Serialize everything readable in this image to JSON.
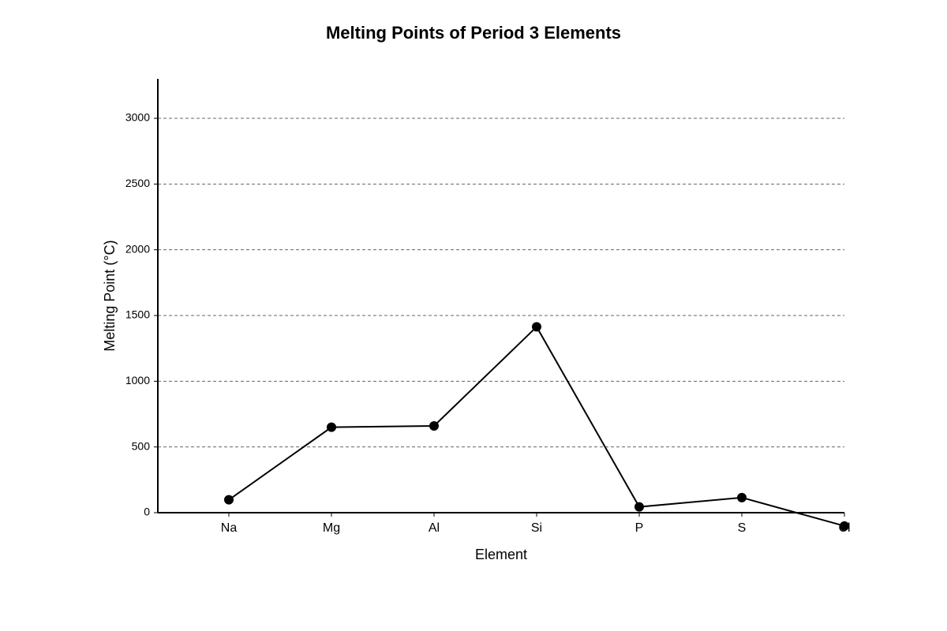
{
  "chart_data": {
    "type": "line",
    "title": "Melting Points of Period 3 Elements",
    "x_label": "Element",
    "y_label": "Melting Point (°C)",
    "categories": [
      "Na",
      "Mg",
      "Al",
      "Si",
      "P",
      "S",
      "Cl"
    ],
    "values": [
      98,
      650,
      660,
      1414,
      44,
      115,
      -101
    ],
    "color": "#000000",
    "ylim": [
      0,
      3300
    ],
    "yticks": [
      0,
      500,
      1000,
      1500,
      2000,
      2500,
      3000
    ],
    "grid": true
  }
}
